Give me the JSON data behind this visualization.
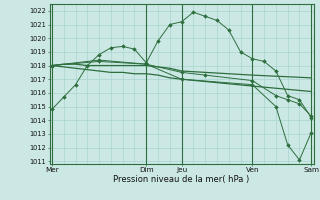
{
  "background_color": "#cce8e4",
  "grid_color": "#aad4d0",
  "line_color": "#2d6e3e",
  "xlabel": "Pression niveau de la mer( hPa )",
  "ylim": [
    1010.8,
    1022.5
  ],
  "yticks": [
    1011,
    1012,
    1013,
    1014,
    1015,
    1016,
    1017,
    1018,
    1019,
    1020,
    1021,
    1022
  ],
  "day_labels": [
    "Mer",
    "Dim",
    "Jeu",
    "Ven",
    "Sam"
  ],
  "day_positions": [
    0,
    8,
    11,
    17,
    22
  ],
  "xlim": [
    -0.2,
    22.2
  ],
  "series1_x": [
    0,
    1,
    2,
    3,
    4,
    5,
    6,
    7,
    8,
    9,
    10,
    11,
    12,
    13,
    14,
    15,
    16,
    17,
    18,
    19,
    20,
    21,
    22
  ],
  "series1_y": [
    1014.8,
    1015.7,
    1016.6,
    1018.0,
    1018.8,
    1019.3,
    1019.4,
    1019.2,
    1018.2,
    1019.8,
    1021.0,
    1021.2,
    1021.9,
    1021.6,
    1021.3,
    1020.6,
    1019.0,
    1018.5,
    1018.3,
    1017.6,
    1015.8,
    1015.5,
    1014.2
  ],
  "series2_x": [
    0,
    1,
    2,
    3,
    4,
    5,
    6,
    7,
    8,
    9,
    10,
    11,
    17,
    22
  ],
  "series2_y": [
    1018.0,
    1018.1,
    1018.1,
    1018.0,
    1018.0,
    1018.0,
    1018.0,
    1018.0,
    1018.0,
    1017.9,
    1017.8,
    1017.6,
    1017.3,
    1017.1
  ],
  "series3_x": [
    0,
    1,
    2,
    3,
    4,
    5,
    6,
    7,
    8,
    9,
    10,
    11,
    17,
    22
  ],
  "series3_y": [
    1018.0,
    1017.9,
    1017.8,
    1017.7,
    1017.6,
    1017.5,
    1017.5,
    1017.4,
    1017.4,
    1017.3,
    1017.1,
    1017.0,
    1016.5,
    1016.1
  ],
  "series4_x": [
    0,
    4,
    8,
    11,
    13,
    17,
    19,
    20,
    21,
    22
  ],
  "series4_y": [
    1018.0,
    1018.4,
    1018.1,
    1017.5,
    1017.3,
    1016.9,
    1015.8,
    1015.5,
    1015.2,
    1014.3
  ],
  "series5_x": [
    0,
    4,
    8,
    11,
    17,
    19,
    20,
    21,
    22
  ],
  "series5_y": [
    1018.0,
    1018.3,
    1018.1,
    1017.0,
    1016.6,
    1015.0,
    1012.2,
    1011.1,
    1013.1
  ],
  "vlines": [
    0,
    8,
    11,
    17,
    22
  ]
}
